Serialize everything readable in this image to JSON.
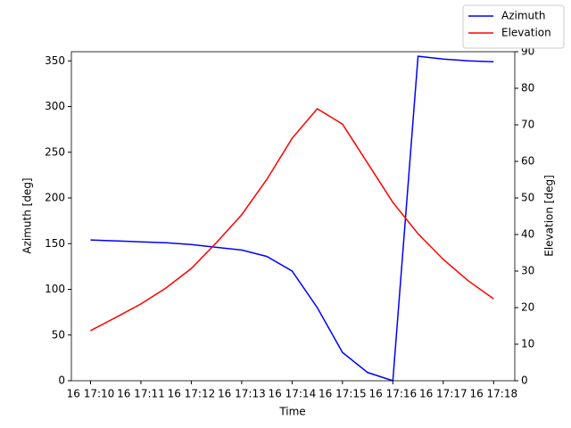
{
  "chart_data": {
    "type": "line",
    "x_label": "Time",
    "y_label": "Azimuth [deg]",
    "y2_label": "Elevation [deg]",
    "x": [
      10,
      10.5,
      11,
      11.5,
      12,
      12.5,
      13,
      13.5,
      14,
      14.5,
      15,
      15.5,
      16,
      16.5,
      17,
      17.5,
      18
    ],
    "series": [
      {
        "name": "Azimuth",
        "color": "#0000ff",
        "values": [
          154,
          153,
          152,
          151,
          149,
          146,
          143,
          136,
          120,
          80,
          31,
          9,
          0,
          355,
          352,
          350,
          349
        ]
      },
      {
        "name": "Elevation",
        "color": "#ff0000",
        "axis": "y2",
        "values": [
          13.7,
          17.3,
          21,
          25.4,
          30.7,
          37.8,
          45.4,
          55.1,
          66.3,
          74.4,
          70.2,
          59.5,
          48.8,
          40.2,
          33.2,
          27.3,
          22.4
        ]
      }
    ],
    "xlim": [
      9.62,
      18.42
    ],
    "xticks": [
      {
        "value": 10,
        "label": "16 17:10"
      },
      {
        "value": 11,
        "label": "16 17:11"
      },
      {
        "value": 12,
        "label": "16 17:12"
      },
      {
        "value": 13,
        "label": "16 17:13"
      },
      {
        "value": 14,
        "label": "16 17:14"
      },
      {
        "value": 15,
        "label": "16 17:15"
      },
      {
        "value": 16,
        "label": "16 17:16"
      },
      {
        "value": 17,
        "label": "16 17:17"
      },
      {
        "value": 18,
        "label": "16 17:18"
      }
    ],
    "ylim": [
      0,
      360
    ],
    "yticks": [
      0,
      50,
      100,
      150,
      200,
      250,
      300,
      350
    ],
    "y2lim": [
      0,
      90
    ],
    "y2ticks": [
      0,
      10,
      20,
      30,
      40,
      50,
      60,
      70,
      80,
      90
    ],
    "legend": "upper right"
  }
}
